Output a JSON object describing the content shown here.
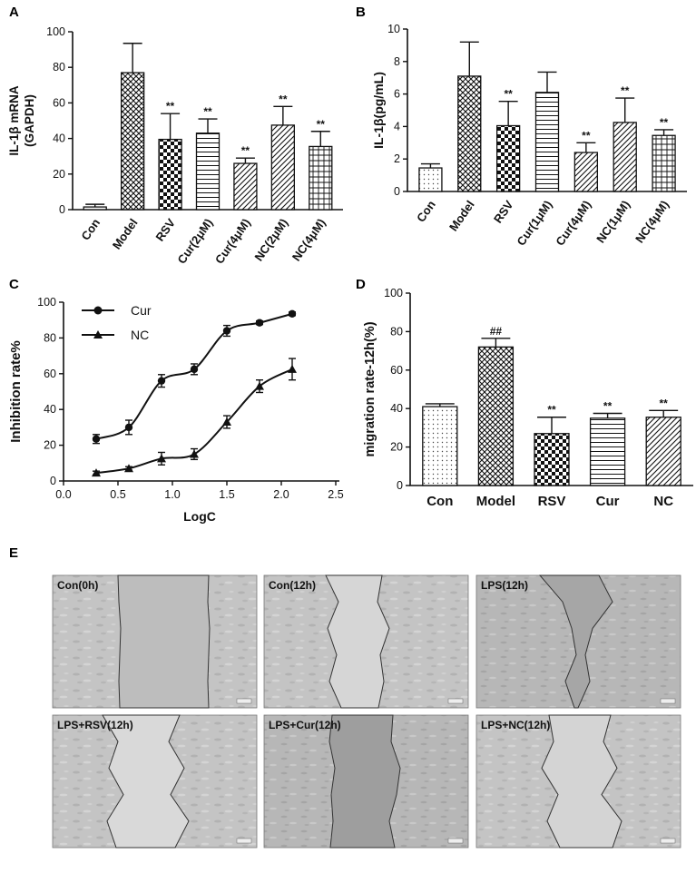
{
  "panels": {
    "A": "A",
    "B": "B",
    "C": "C",
    "D": "D",
    "E": "E"
  },
  "chart_data": [
    {
      "id": "A",
      "type": "bar",
      "ylabel": "IL-1β mRNA (GAPDH)",
      "ylabel_lines": [
        "IL-1β mRNA",
        "(GAPDH)"
      ],
      "ylim": [
        0,
        100
      ],
      "yticks": [
        0,
        20,
        40,
        60,
        80,
        100
      ],
      "categories": [
        "Con",
        "Model",
        "RSV",
        "Cur(2μM)",
        "Cur(4μM)",
        "NC(2μM)",
        "NC(4μM)"
      ],
      "values": [
        1.5,
        77,
        39.5,
        43,
        26,
        47.5,
        35.5
      ],
      "errors": [
        1.5,
        16.5,
        14.5,
        8,
        3,
        10.5,
        8.5
      ],
      "annotations": [
        "",
        "",
        "**",
        "**",
        "**",
        "**",
        "**"
      ],
      "patterns": [
        "blank",
        "crosshatch",
        "checker",
        "hlines",
        "diag",
        "diag",
        "grid"
      ]
    },
    {
      "id": "B",
      "type": "bar",
      "ylabel": "IL-1β(pg/mL)",
      "ylim": [
        0,
        10
      ],
      "yticks": [
        0,
        2,
        4,
        6,
        8,
        10
      ],
      "categories": [
        "Con",
        "Model",
        "RSV",
        "Cur(1μM)",
        "Cur(4μM)",
        "NC(1μM)",
        "NC(4μM)"
      ],
      "values": [
        1.45,
        7.1,
        4.05,
        6.1,
        2.4,
        4.25,
        3.45
      ],
      "errors": [
        0.25,
        2.1,
        1.5,
        1.25,
        0.6,
        1.5,
        0.35
      ],
      "annotations": [
        "",
        "",
        "**",
        "",
        "**",
        "**",
        "**"
      ],
      "patterns": [
        "dots",
        "crosshatch",
        "checker",
        "hlines",
        "diag",
        "diag",
        "grid"
      ]
    },
    {
      "id": "C",
      "type": "line",
      "xlabel": "LogC",
      "ylabel": "Inhibition rate%",
      "xlim": [
        0,
        2.5
      ],
      "ylim": [
        0,
        100
      ],
      "xticks": [
        "0.0",
        "0.5",
        "1.0",
        "1.5",
        "2.0",
        "2.5"
      ],
      "yticks": [
        0,
        20,
        40,
        60,
        80,
        100
      ],
      "series": [
        {
          "name": "Cur",
          "marker": "circle",
          "x": [
            0.3,
            0.6,
            0.9,
            1.2,
            1.5,
            1.8,
            2.1
          ],
          "y": [
            23.5,
            30,
            56,
            62.5,
            84,
            88.5,
            93.5
          ],
          "err": [
            2.5,
            4,
            3.5,
            3,
            3,
            1,
            1
          ]
        },
        {
          "name": "NC",
          "marker": "triangle",
          "x": [
            0.3,
            0.6,
            0.9,
            1.2,
            1.5,
            1.8,
            2.1
          ],
          "y": [
            4.5,
            7,
            12.5,
            15,
            33,
            53,
            62.5
          ],
          "err": [
            1,
            1,
            3.5,
            3,
            3.5,
            3.5,
            6
          ]
        }
      ]
    },
    {
      "id": "D",
      "type": "bar",
      "ylabel": "migration rate-12h(%)",
      "ylim": [
        0,
        100
      ],
      "yticks": [
        0,
        20,
        40,
        60,
        80,
        100
      ],
      "categories": [
        "Con",
        "Model",
        "RSV",
        "Cur",
        "NC"
      ],
      "values": [
        41,
        72,
        27,
        35,
        35.5
      ],
      "errors": [
        1.5,
        4.5,
        8.5,
        2.5,
        3.5
      ],
      "annotations": [
        "",
        "##",
        "**",
        "**",
        "**"
      ],
      "patterns": [
        "dots",
        "crosshatch",
        "checker",
        "hlines",
        "diag"
      ]
    }
  ],
  "micrographs": [
    {
      "label": "Con(0h)"
    },
    {
      "label": "Con(12h)"
    },
    {
      "label": "LPS(12h)"
    },
    {
      "label": "LPS+RSV(12h)"
    },
    {
      "label": "LPS+Cur(12h)"
    },
    {
      "label": "LPS+NC(12h)"
    }
  ]
}
